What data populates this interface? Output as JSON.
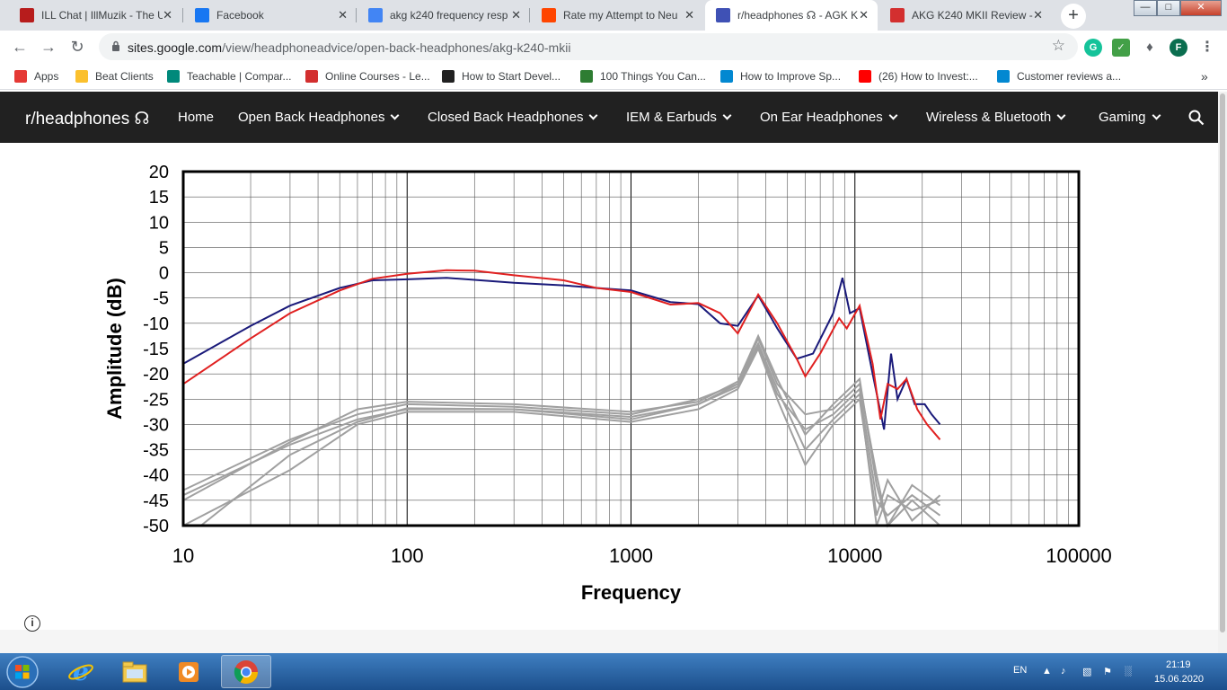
{
  "tabs": [
    {
      "title": "ILL Chat | IllMuzik - The U",
      "icon": "illmuzik-icon",
      "color": "#b71c1c"
    },
    {
      "title": "Facebook",
      "icon": "facebook-icon",
      "color": "#1877f2"
    },
    {
      "title": "akg k240 frequency resp",
      "icon": "google-icon",
      "color": "#4285f4"
    },
    {
      "title": "Rate my Attempt to Neu",
      "icon": "reddit-icon",
      "color": "#ff4500"
    },
    {
      "title": "r/headphones ☊ - AGK K",
      "icon": "sites-icon",
      "color": "#3f51b5",
      "active": true
    },
    {
      "title": "AKG K240 MKII Review -",
      "icon": "review-icon",
      "color": "#d32f2f"
    }
  ],
  "address": {
    "domain": "sites.google.com",
    "path": "/view/headphoneadvice/open-back-headphones/akg-k240-mkii"
  },
  "profile_initial": "F",
  "bookmarks": [
    {
      "label": "Apps",
      "icon": "apps-grid-icon"
    },
    {
      "label": "Beat Clients",
      "icon": "folder-icon"
    },
    {
      "label": "Teachable | Compar...",
      "icon": "teachable-icon"
    },
    {
      "label": "Online Courses - Le...",
      "icon": "udemy-icon"
    },
    {
      "label": "How to Start Devel...",
      "icon": "e-icon"
    },
    {
      "label": "100 Things You Can...",
      "icon": "gear-icon"
    },
    {
      "label": "How to Improve Sp...",
      "icon": "sync-icon"
    },
    {
      "label": "(26) How to Invest:...",
      "icon": "youtube-icon"
    },
    {
      "label": "Customer reviews a...",
      "icon": "t-icon"
    }
  ],
  "site": {
    "name": "r/headphones ☊",
    "nav": [
      {
        "label": "Home",
        "dropdown": false
      },
      {
        "label": "Open Back Headphones",
        "dropdown": true
      },
      {
        "label": "Closed Back Headphones",
        "dropdown": true
      },
      {
        "label": "IEM & Earbuds",
        "dropdown": true
      },
      {
        "label": "On Ear Headphones",
        "dropdown": true
      },
      {
        "label": "Wireless & Bluetooth",
        "dropdown": true
      },
      {
        "label": "Gaming",
        "dropdown": true
      }
    ]
  },
  "chart_data": {
    "type": "line",
    "title": "",
    "xlabel": "Frequency",
    "ylabel": "Amplitude (dB)",
    "xscale": "log",
    "xlim": [
      10,
      100000
    ],
    "ylim": [
      -50,
      20
    ],
    "x_ticks": [
      "10",
      "100",
      "1000",
      "10000",
      "100000"
    ],
    "y_ticks": [
      "20",
      "15",
      "10",
      "5",
      "0",
      "-5",
      "-10",
      "-15",
      "-20",
      "-25",
      "-30",
      "-35",
      "-40",
      "-45",
      "-50"
    ],
    "grid": true,
    "series": [
      {
        "color": "#1a1a7a",
        "points": [
          [
            10,
            -18
          ],
          [
            20,
            -10.5
          ],
          [
            30,
            -6.5
          ],
          [
            50,
            -3
          ],
          [
            70,
            -1.5
          ],
          [
            100,
            -1.3
          ],
          [
            150,
            -1
          ],
          [
            200,
            -1.4
          ],
          [
            300,
            -2
          ],
          [
            500,
            -2.5
          ],
          [
            700,
            -3
          ],
          [
            1000,
            -3.5
          ],
          [
            1500,
            -5.8
          ],
          [
            2000,
            -6.2
          ],
          [
            2500,
            -10
          ],
          [
            3000,
            -10.5
          ],
          [
            3700,
            -4.5
          ],
          [
            4500,
            -11
          ],
          [
            5500,
            -17
          ],
          [
            6500,
            -16
          ],
          [
            8000,
            -8
          ],
          [
            8800,
            -1
          ],
          [
            9500,
            -8
          ],
          [
            10500,
            -7
          ],
          [
            12000,
            -20
          ],
          [
            13500,
            -31
          ],
          [
            14500,
            -16
          ],
          [
            15500,
            -25
          ],
          [
            17000,
            -21
          ],
          [
            18500,
            -26
          ],
          [
            20500,
            -26
          ],
          [
            22000,
            -28
          ],
          [
            24000,
            -30
          ]
        ]
      },
      {
        "color": "#e02020",
        "points": [
          [
            10,
            -22
          ],
          [
            20,
            -13
          ],
          [
            30,
            -8
          ],
          [
            50,
            -3.5
          ],
          [
            70,
            -1.2
          ],
          [
            100,
            -0.2
          ],
          [
            150,
            0.5
          ],
          [
            200,
            0.4
          ],
          [
            300,
            -0.5
          ],
          [
            500,
            -1.5
          ],
          [
            700,
            -3
          ],
          [
            1000,
            -3.8
          ],
          [
            1500,
            -6.3
          ],
          [
            2000,
            -6
          ],
          [
            2500,
            -8
          ],
          [
            3000,
            -12
          ],
          [
            3700,
            -4.3
          ],
          [
            4500,
            -10
          ],
          [
            5500,
            -17
          ],
          [
            6000,
            -20.5
          ],
          [
            7000,
            -16
          ],
          [
            8500,
            -9
          ],
          [
            9200,
            -11
          ],
          [
            10500,
            -6.5
          ],
          [
            12000,
            -18
          ],
          [
            13000,
            -29
          ],
          [
            14000,
            -22
          ],
          [
            15500,
            -23
          ],
          [
            17000,
            -21
          ],
          [
            19000,
            -27
          ],
          [
            21000,
            -30
          ],
          [
            24000,
            -33
          ]
        ]
      }
    ],
    "gray_series": [
      {
        "color": "#a0a0a0",
        "points": [
          [
            10,
            -43
          ],
          [
            30,
            -33
          ],
          [
            60,
            -28
          ],
          [
            100,
            -26
          ],
          [
            300,
            -26.5
          ],
          [
            1000,
            -28
          ],
          [
            2000,
            -25
          ],
          [
            3000,
            -22
          ],
          [
            3700,
            -13
          ],
          [
            4500,
            -22
          ],
          [
            6000,
            -28
          ],
          [
            8000,
            -27
          ],
          [
            10500,
            -22
          ],
          [
            12500,
            -40
          ],
          [
            14000,
            -50
          ],
          [
            18000,
            -42
          ],
          [
            24000,
            -46
          ]
        ]
      },
      {
        "color": "#a0a0a0",
        "points": [
          [
            10,
            -44
          ],
          [
            30,
            -34
          ],
          [
            60,
            -29
          ],
          [
            100,
            -27
          ],
          [
            300,
            -27
          ],
          [
            1000,
            -29
          ],
          [
            2000,
            -26
          ],
          [
            3000,
            -22.5
          ],
          [
            3700,
            -14.5
          ],
          [
            4500,
            -24
          ],
          [
            6000,
            -31
          ],
          [
            8000,
            -28
          ],
          [
            10500,
            -23
          ],
          [
            12500,
            -45
          ],
          [
            14000,
            -48
          ],
          [
            18000,
            -44
          ],
          [
            24000,
            -48
          ]
        ]
      },
      {
        "color": "#a0a0a0",
        "points": [
          [
            10,
            -50
          ],
          [
            30,
            -39
          ],
          [
            60,
            -30
          ],
          [
            100,
            -27.5
          ],
          [
            300,
            -27.5
          ],
          [
            1000,
            -29.5
          ],
          [
            2000,
            -27
          ],
          [
            3000,
            -23
          ],
          [
            3700,
            -15
          ],
          [
            4500,
            -25
          ],
          [
            6000,
            -38
          ],
          [
            8000,
            -30
          ],
          [
            10500,
            -25
          ],
          [
            12500,
            -48
          ],
          [
            14000,
            -41
          ],
          [
            18000,
            -49
          ],
          [
            24000,
            -44
          ]
        ]
      },
      {
        "color": "#a0a0a0",
        "points": [
          [
            10,
            -45
          ],
          [
            30,
            -33.5
          ],
          [
            60,
            -27
          ],
          [
            100,
            -25.5
          ],
          [
            300,
            -26
          ],
          [
            1000,
            -27.5
          ],
          [
            2000,
            -25.5
          ],
          [
            3000,
            -21.5
          ],
          [
            3700,
            -12.5
          ],
          [
            4500,
            -21
          ],
          [
            6000,
            -32
          ],
          [
            8000,
            -26
          ],
          [
            10500,
            -21
          ],
          [
            12500,
            -42
          ],
          [
            14000,
            -50
          ],
          [
            18000,
            -45
          ],
          [
            24000,
            -50
          ]
        ]
      },
      {
        "color": "#a0a0a0",
        "points": [
          [
            12,
            -50
          ],
          [
            30,
            -36
          ],
          [
            60,
            -29.5
          ],
          [
            100,
            -26.8
          ],
          [
            300,
            -27
          ],
          [
            1000,
            -28.5
          ],
          [
            2000,
            -26
          ],
          [
            3000,
            -22
          ],
          [
            3700,
            -14
          ],
          [
            4500,
            -23
          ],
          [
            6000,
            -35
          ],
          [
            8000,
            -29
          ],
          [
            10500,
            -24
          ],
          [
            12500,
            -50
          ],
          [
            14000,
            -44
          ],
          [
            18000,
            -47
          ],
          [
            24000,
            -45
          ]
        ]
      }
    ]
  },
  "taskbar": {
    "apps": [
      {
        "name": "internet-explorer-icon"
      },
      {
        "name": "file-explorer-icon"
      },
      {
        "name": "media-player-icon"
      },
      {
        "name": "chrome-icon",
        "active": true
      }
    ],
    "lang": "EN",
    "time": "21:19",
    "date": "15.06.2020"
  }
}
